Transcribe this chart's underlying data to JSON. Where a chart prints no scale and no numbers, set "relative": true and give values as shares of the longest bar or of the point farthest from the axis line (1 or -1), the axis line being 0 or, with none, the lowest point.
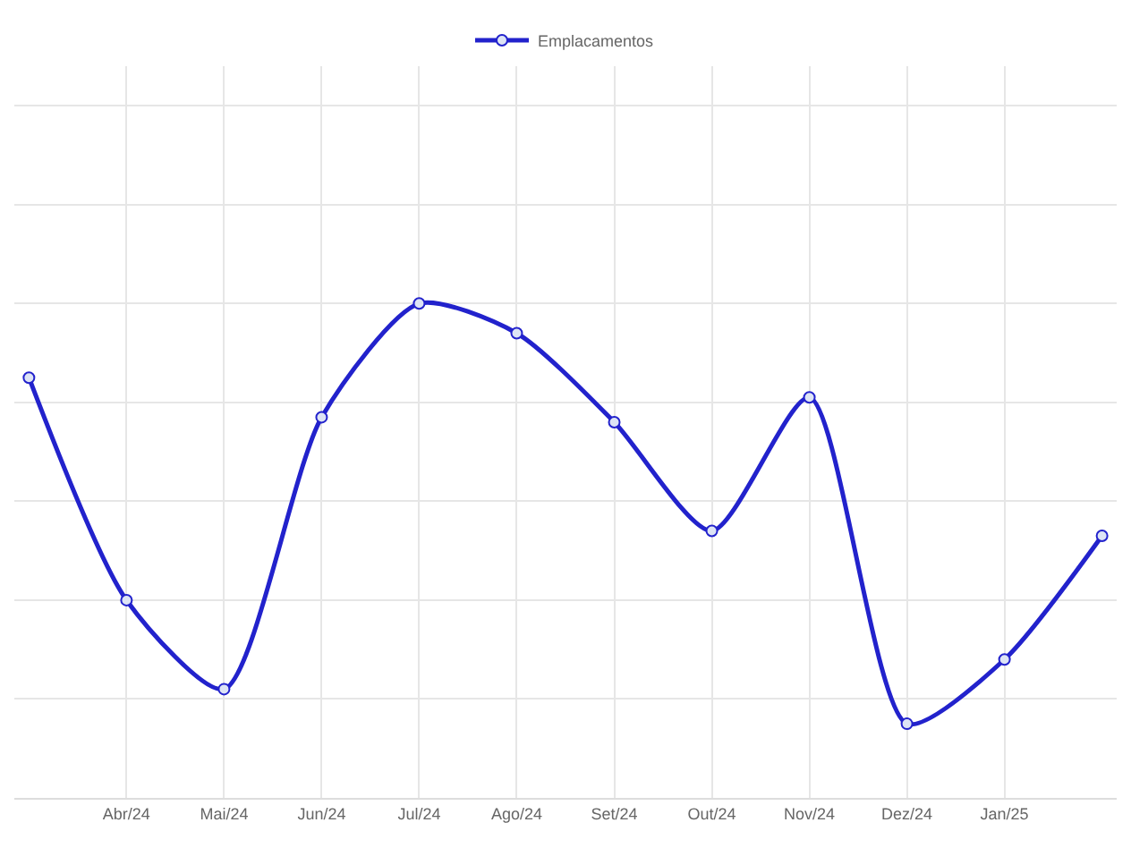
{
  "chart_data": {
    "type": "line",
    "relative": true,
    "categories": [
      null,
      "Abr/24",
      "Mai/24",
      "Jun/24",
      "Jul/24",
      "Ago/24",
      "Set/24",
      "Out/24",
      "Nov/24",
      "Dez/24",
      "Jan/25",
      null
    ],
    "series": [
      {
        "name": "Emplacamentos",
        "color": "#2222cc",
        "values": [
          0.85,
          0.4,
          0.22,
          0.77,
          1,
          0.94,
          0.76,
          0.54,
          0.81,
          0.15,
          0.28,
          0.53
        ]
      }
    ],
    "grid": true,
    "legend": "top",
    "marker": "circle",
    "line_style": "solid"
  }
}
